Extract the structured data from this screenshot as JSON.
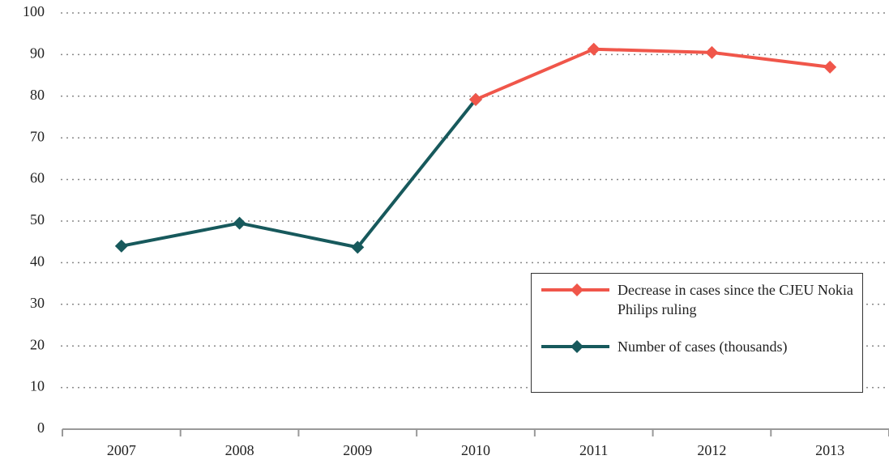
{
  "chart_data": {
    "type": "line",
    "categories": [
      "2007",
      "2008",
      "2009",
      "2010",
      "2011",
      "2012",
      "2013"
    ],
    "series": [
      {
        "name": "Decrease in cases since the CJEU Nokia Philips ruling",
        "color": "#f0564a",
        "values": [
          null,
          null,
          null,
          79.2,
          91.3,
          90.5,
          87
        ]
      },
      {
        "name": "Number of cases (thousands)",
        "color": "#17595c",
        "values": [
          44,
          49.5,
          43.7,
          79.2,
          null,
          null,
          null
        ]
      }
    ],
    "ylim": [
      0,
      100
    ],
    "yticks": [
      0,
      10,
      20,
      30,
      40,
      50,
      60,
      70,
      80,
      90,
      100
    ],
    "grid": true,
    "legend": "lower right"
  }
}
